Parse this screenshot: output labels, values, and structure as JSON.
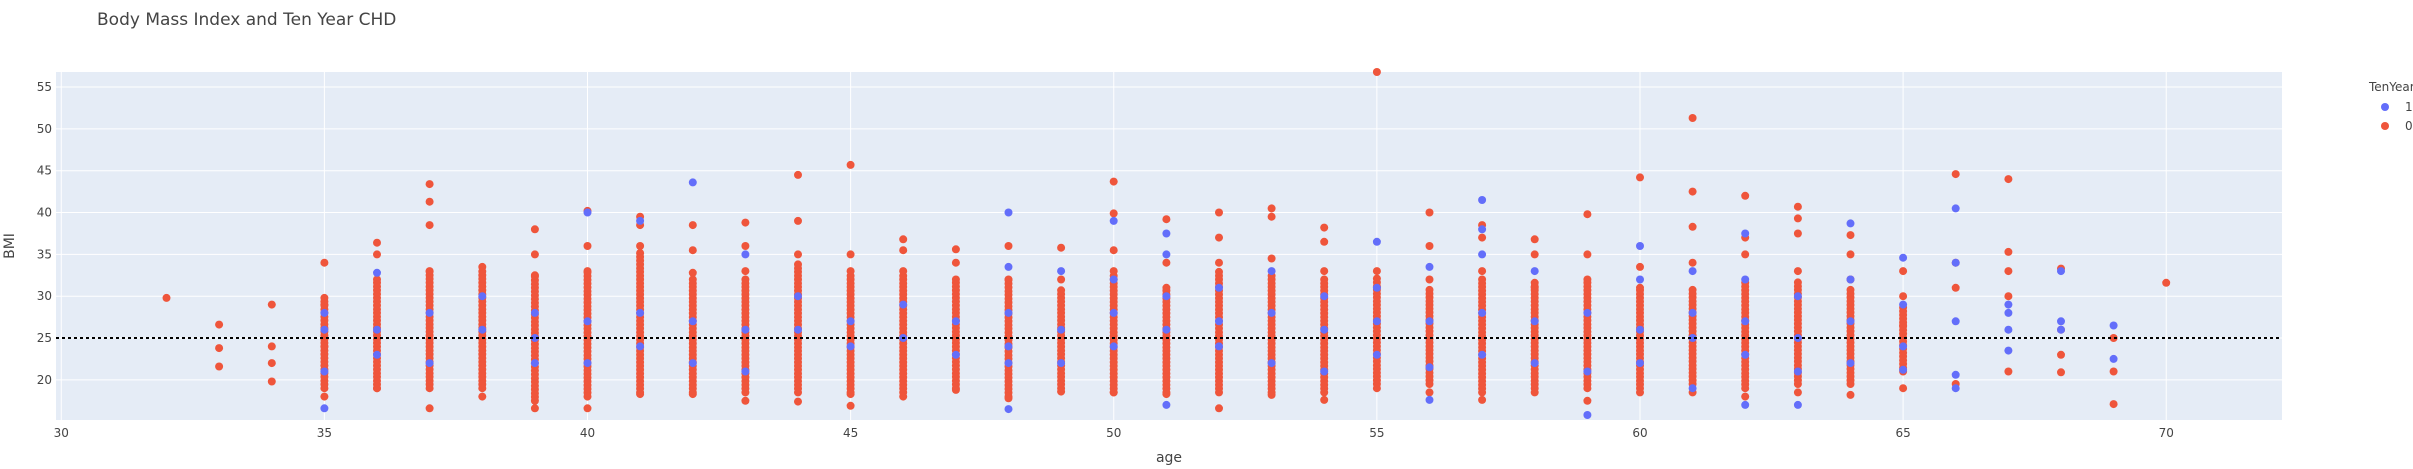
{
  "chart_data": {
    "type": "scatter",
    "title": "Body Mass Index and Ten Year CHD",
    "xlabel": "age",
    "ylabel": "BMI",
    "xlim": [
      29.9,
      72.2
    ],
    "ylim": [
      15.2,
      56.8
    ],
    "x_ticks": [
      30,
      35,
      40,
      45,
      50,
      55,
      60,
      65,
      70
    ],
    "y_ticks": [
      20,
      25,
      30,
      35,
      40,
      45,
      50,
      55
    ],
    "grid": true,
    "legend": {
      "title": "TenYearCHD",
      "position": "top-right"
    },
    "reference_line": {
      "y": 25,
      "style": "dotted",
      "color": "#000000"
    },
    "colors": {
      "1": "#636efa",
      "0": "#ef553b",
      "plot_bg": "#e5ecf6",
      "grid": "#ffffff"
    },
    "series": [
      {
        "name": "1",
        "color": "#636efa",
        "points": [
          [
            35,
            16.6
          ],
          [
            35,
            21
          ],
          [
            35,
            26
          ],
          [
            35,
            28
          ],
          [
            36,
            32.8
          ],
          [
            36,
            26
          ],
          [
            36,
            23
          ],
          [
            37,
            28
          ],
          [
            37,
            22
          ],
          [
            38,
            26
          ],
          [
            38,
            30
          ],
          [
            39,
            25
          ],
          [
            39,
            28
          ],
          [
            39,
            22
          ],
          [
            40,
            40
          ],
          [
            40,
            27
          ],
          [
            40,
            22
          ],
          [
            41,
            39
          ],
          [
            41,
            28
          ],
          [
            41,
            24
          ],
          [
            42,
            43.6
          ],
          [
            42,
            27
          ],
          [
            42,
            22
          ],
          [
            43,
            35
          ],
          [
            43,
            26
          ],
          [
            43,
            21
          ],
          [
            44,
            30
          ],
          [
            44,
            26
          ],
          [
            45,
            27
          ],
          [
            45,
            24
          ],
          [
            46,
            29
          ],
          [
            46,
            25
          ],
          [
            47,
            27
          ],
          [
            47,
            23
          ],
          [
            48,
            40
          ],
          [
            48,
            33.5
          ],
          [
            48,
            16.5
          ],
          [
            48,
            28
          ],
          [
            48,
            24
          ],
          [
            48,
            22
          ],
          [
            49,
            33
          ],
          [
            49,
            26
          ],
          [
            49,
            22
          ],
          [
            50,
            39
          ],
          [
            50,
            32
          ],
          [
            50,
            28
          ],
          [
            50,
            24
          ],
          [
            51,
            37.5
          ],
          [
            51,
            35
          ],
          [
            51,
            17
          ],
          [
            51,
            30
          ],
          [
            51,
            26
          ],
          [
            52,
            31
          ],
          [
            52,
            27
          ],
          [
            52,
            24
          ],
          [
            53,
            33
          ],
          [
            53,
            28
          ],
          [
            53,
            22
          ],
          [
            54,
            30
          ],
          [
            54,
            26
          ],
          [
            54,
            21
          ],
          [
            55,
            36.5
          ],
          [
            55,
            31
          ],
          [
            55,
            27
          ],
          [
            55,
            23
          ],
          [
            56,
            33.5
          ],
          [
            56,
            21.5
          ],
          [
            56,
            17.6
          ],
          [
            56,
            27
          ],
          [
            57,
            41.5
          ],
          [
            57,
            38
          ],
          [
            57,
            35
          ],
          [
            57,
            28
          ],
          [
            57,
            23
          ],
          [
            58,
            33
          ],
          [
            58,
            27
          ],
          [
            58,
            22
          ],
          [
            59,
            28
          ],
          [
            59,
            21
          ],
          [
            59,
            15.8
          ],
          [
            60,
            36
          ],
          [
            60,
            32
          ],
          [
            60,
            26
          ],
          [
            60,
            22
          ],
          [
            61,
            33
          ],
          [
            61,
            28
          ],
          [
            61,
            25
          ],
          [
            61,
            19
          ],
          [
            62,
            37.5
          ],
          [
            62,
            32
          ],
          [
            62,
            27
          ],
          [
            62,
            23
          ],
          [
            62,
            17
          ],
          [
            63,
            30
          ],
          [
            63,
            25
          ],
          [
            63,
            17
          ],
          [
            63,
            21
          ],
          [
            64,
            38.7
          ],
          [
            64,
            32
          ],
          [
            64,
            27
          ],
          [
            64,
            22
          ],
          [
            65,
            34.6
          ],
          [
            65,
            29
          ],
          [
            65,
            24
          ],
          [
            65,
            21.2
          ],
          [
            66,
            40.5
          ],
          [
            66,
            34
          ],
          [
            66,
            27
          ],
          [
            66,
            20.6
          ],
          [
            66,
            19
          ],
          [
            67,
            29
          ],
          [
            67,
            28
          ],
          [
            67,
            26
          ],
          [
            67,
            23.5
          ],
          [
            68,
            33
          ],
          [
            68,
            27
          ],
          [
            68,
            26
          ],
          [
            69,
            26.5
          ],
          [
            69,
            22.5
          ]
        ]
      },
      {
        "name": "0",
        "color": "#ef553b",
        "points": [
          [
            32,
            29.8
          ],
          [
            33,
            26.6
          ],
          [
            33,
            23.8
          ],
          [
            33,
            21.6
          ],
          [
            34,
            29
          ],
          [
            34,
            24
          ],
          [
            34,
            22
          ],
          [
            34,
            19.8
          ],
          [
            35,
            34
          ],
          [
            35,
            29
          ],
          [
            35,
            24
          ],
          [
            35,
            18
          ],
          [
            36,
            36.4
          ],
          [
            36,
            35
          ],
          [
            36,
            32
          ],
          [
            36,
            19
          ],
          [
            37,
            43.4
          ],
          [
            37,
            41.3
          ],
          [
            37,
            38.5
          ],
          [
            37,
            33
          ],
          [
            37,
            16.6
          ],
          [
            38,
            33.5
          ],
          [
            38,
            18
          ],
          [
            39,
            38
          ],
          [
            39,
            35
          ],
          [
            39,
            32.5
          ],
          [
            39,
            16.6
          ],
          [
            40,
            40.2
          ],
          [
            40,
            36
          ],
          [
            40,
            33
          ],
          [
            40,
            16.6
          ],
          [
            41,
            39.5
          ],
          [
            41,
            38.5
          ],
          [
            41,
            36
          ],
          [
            41,
            18.3
          ],
          [
            42,
            38.5
          ],
          [
            42,
            35.5
          ],
          [
            42,
            32.8
          ],
          [
            42,
            18.3
          ],
          [
            43,
            38.8
          ],
          [
            43,
            36
          ],
          [
            43,
            33
          ],
          [
            43,
            17.5
          ],
          [
            44,
            44.5
          ],
          [
            44,
            39
          ],
          [
            44,
            35
          ],
          [
            44,
            17.4
          ],
          [
            45,
            45.7
          ],
          [
            45,
            35
          ],
          [
            45,
            33
          ],
          [
            45,
            16.9
          ],
          [
            45,
            18.3
          ],
          [
            46,
            36.8
          ],
          [
            46,
            35.5
          ],
          [
            46,
            33
          ],
          [
            46,
            18
          ],
          [
            47,
            35.6
          ],
          [
            47,
            34
          ],
          [
            47,
            32
          ],
          [
            47,
            18.8
          ],
          [
            48,
            36
          ],
          [
            48,
            32
          ],
          [
            48,
            17.8
          ],
          [
            49,
            35.8
          ],
          [
            49,
            32
          ],
          [
            49,
            18.6
          ],
          [
            50,
            43.7
          ],
          [
            50,
            39.9
          ],
          [
            50,
            35.5
          ],
          [
            50,
            33
          ],
          [
            50,
            18.5
          ],
          [
            51,
            39.2
          ],
          [
            51,
            34
          ],
          [
            51,
            31
          ],
          [
            51,
            18.3
          ],
          [
            52,
            40
          ],
          [
            52,
            37
          ],
          [
            52,
            34
          ],
          [
            52,
            16.6
          ],
          [
            53,
            40.5
          ],
          [
            53,
            39.5
          ],
          [
            53,
            34.5
          ],
          [
            53,
            18.2
          ],
          [
            54,
            38.2
          ],
          [
            54,
            36.5
          ],
          [
            54,
            33
          ],
          [
            54,
            17.6
          ],
          [
            55,
            56.8
          ],
          [
            55,
            33
          ],
          [
            55,
            31
          ],
          [
            55,
            19
          ],
          [
            56,
            40
          ],
          [
            56,
            36
          ],
          [
            56,
            32
          ],
          [
            56,
            18.5
          ],
          [
            57,
            38.5
          ],
          [
            57,
            37
          ],
          [
            57,
            33
          ],
          [
            57,
            17.6
          ],
          [
            58,
            36.8
          ],
          [
            58,
            35
          ],
          [
            58,
            31
          ],
          [
            58,
            18.5
          ],
          [
            59,
            39.8
          ],
          [
            59,
            35
          ],
          [
            59,
            32
          ],
          [
            59,
            17.5
          ],
          [
            60,
            44.2
          ],
          [
            60,
            33.5
          ],
          [
            60,
            31
          ],
          [
            60,
            18.5
          ],
          [
            61,
            51.3
          ],
          [
            61,
            42.5
          ],
          [
            61,
            38.3
          ],
          [
            61,
            34
          ],
          [
            61,
            18.5
          ],
          [
            62,
            42
          ],
          [
            62,
            37
          ],
          [
            62,
            35
          ],
          [
            62,
            18
          ],
          [
            63,
            40.7
          ],
          [
            63,
            39.3
          ],
          [
            63,
            37.5
          ],
          [
            63,
            33
          ],
          [
            63,
            18.5
          ],
          [
            64,
            37.3
          ],
          [
            64,
            35
          ],
          [
            64,
            32
          ],
          [
            64,
            18.2
          ],
          [
            65,
            33
          ],
          [
            65,
            30
          ],
          [
            65,
            26.5
          ],
          [
            65,
            19
          ],
          [
            66,
            44.6
          ],
          [
            66,
            34
          ],
          [
            66,
            31
          ],
          [
            66,
            19.5
          ],
          [
            67,
            44
          ],
          [
            67,
            35.3
          ],
          [
            67,
            33
          ],
          [
            67,
            30
          ],
          [
            67,
            21
          ],
          [
            68,
            33.3
          ],
          [
            68,
            26
          ],
          [
            68,
            23
          ],
          [
            68,
            20.9
          ],
          [
            69,
            25
          ],
          [
            69,
            21
          ],
          [
            69,
            17.1
          ],
          [
            70,
            31.6
          ]
        ],
        "dense_columns": [
          [
            35,
            19,
            30
          ],
          [
            36,
            19,
            32
          ],
          [
            37,
            19,
            33
          ],
          [
            38,
            19,
            33.2
          ],
          [
            39,
            17.5,
            32.5
          ],
          [
            40,
            18,
            33
          ],
          [
            41,
            18.5,
            35.5
          ],
          [
            42,
            18.5,
            32
          ],
          [
            43,
            18.5,
            32
          ],
          [
            44,
            18.5,
            34
          ],
          [
            45,
            18.5,
            32.5
          ],
          [
            46,
            18.5,
            32.5
          ],
          [
            47,
            19,
            32
          ],
          [
            48,
            18,
            32
          ],
          [
            49,
            19,
            31
          ],
          [
            50,
            18.5,
            32.5
          ],
          [
            51,
            18.5,
            31
          ],
          [
            52,
            18.5,
            33
          ],
          [
            53,
            18.5,
            32.5
          ],
          [
            54,
            18.5,
            32
          ],
          [
            55,
            19.5,
            32.5
          ],
          [
            56,
            19.5,
            31
          ],
          [
            57,
            18.5,
            32
          ],
          [
            58,
            19,
            32
          ],
          [
            59,
            19,
            32
          ],
          [
            60,
            19,
            31
          ],
          [
            61,
            19.5,
            31
          ],
          [
            62,
            19,
            32
          ],
          [
            63,
            19.5,
            32
          ],
          [
            64,
            19.5,
            31
          ],
          [
            65,
            21,
            29
          ]
        ]
      }
    ]
  }
}
